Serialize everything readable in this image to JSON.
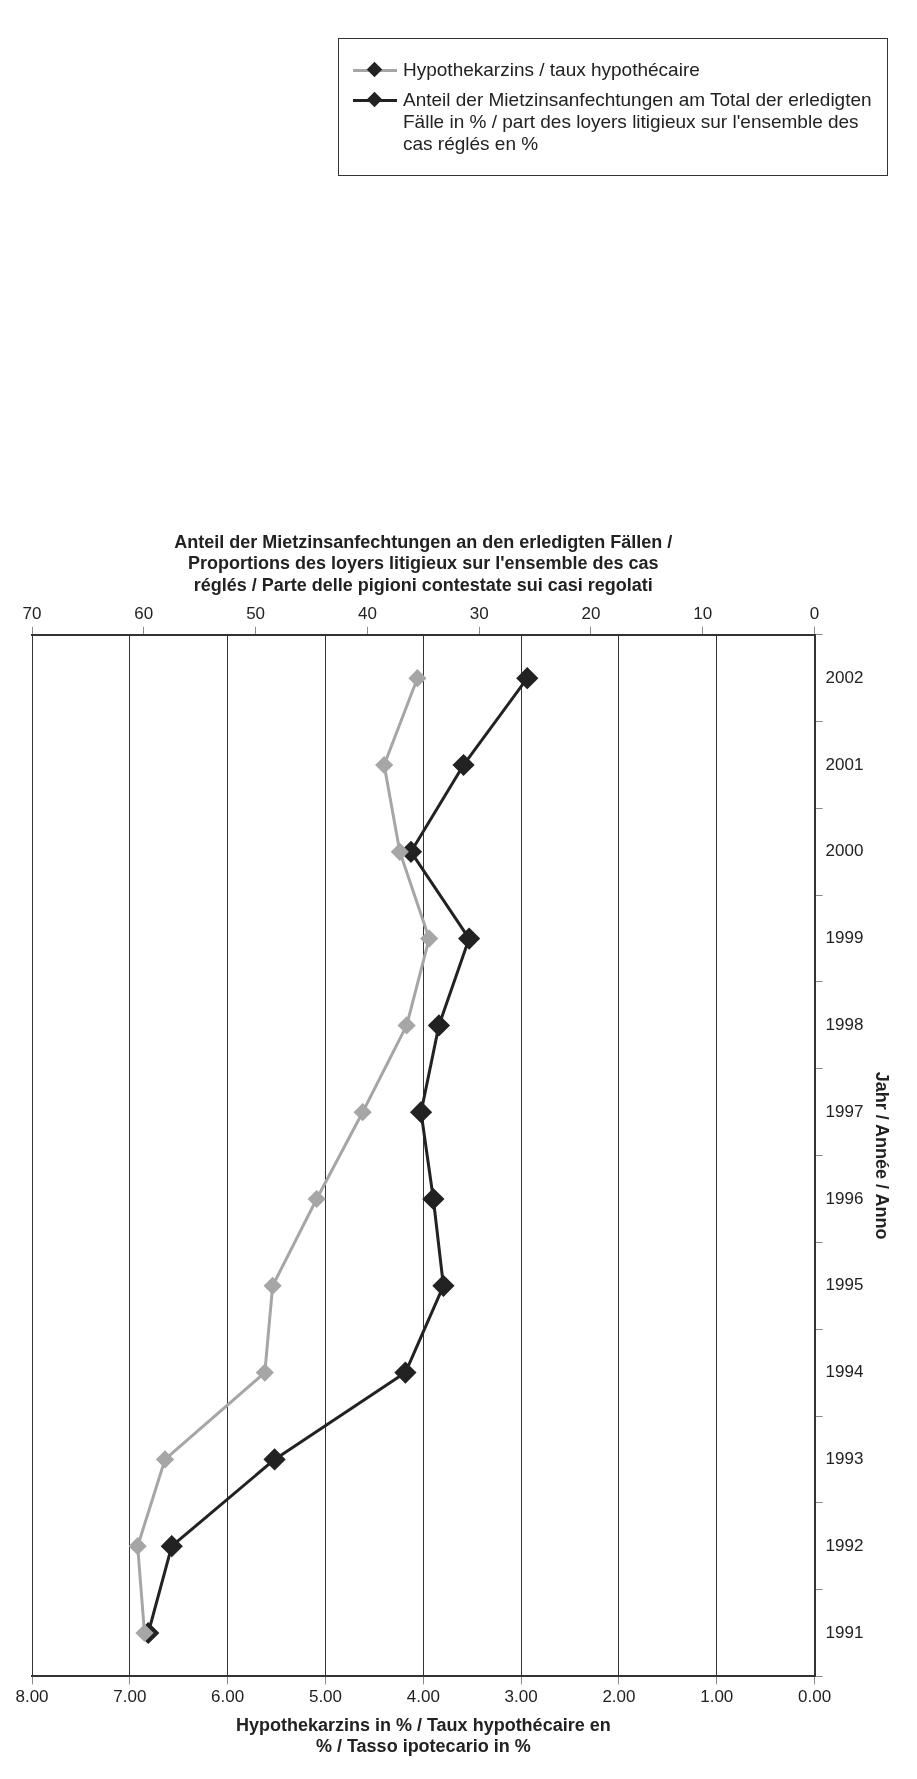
{
  "chart_data": {
    "type": "line",
    "orientation": "horizontal",
    "ylabel": "Jahr / Année / Anno",
    "xlabel": "Hypothekarzins in % / Taux hypothécaire en % / Tasso ipotecario in %",
    "x2label": "Anteil der Mietzinsanfechtungen an den erledigten Fällen / Proportions des loyers litigieux sur l'ensemble des cas réglés / Parte delle pigioni contestate sui casi regolati",
    "categories": [
      "2002",
      "2001",
      "2000",
      "1999",
      "1998",
      "1997",
      "1996",
      "1995",
      "1994",
      "1993",
      "1992",
      "1991"
    ],
    "series": [
      {
        "name": "Hypothekarzins / taux hypothécaire",
        "color": "#a6a6a6",
        "values": [
          4.06,
          4.4,
          4.24,
          3.94,
          4.17,
          4.62,
          5.09,
          5.54,
          5.62,
          6.64,
          6.92,
          6.85
        ]
      },
      {
        "name": "Anteil der Mietzinsanfechtungen am Total der erledigten Fälle in % / part des loyers litigieux sur l'ensemble des cas réglés en %",
        "color": "#222222",
        "axis": "x2",
        "values": [
          25.7,
          31.4,
          36.1,
          30.9,
          33.6,
          35.2,
          34.1,
          33.2,
          36.6,
          48.3,
          57.5,
          59.6
        ]
      }
    ],
    "xlim": [
      8,
      0
    ],
    "xticks": [
      {
        "value": 8,
        "label": "8.00"
      },
      {
        "value": 7,
        "label": "7.00"
      },
      {
        "value": 6,
        "label": "6.00"
      },
      {
        "value": 5,
        "label": "5.00"
      },
      {
        "value": 4,
        "label": "4.00"
      },
      {
        "value": 3,
        "label": "3.00"
      },
      {
        "value": 2,
        "label": "2.00"
      },
      {
        "value": 1,
        "label": "1.00"
      },
      {
        "value": 0,
        "label": "0.00"
      }
    ],
    "x2lim": [
      70,
      0
    ],
    "x2ticks": [
      70,
      60,
      50,
      40,
      30,
      20,
      10,
      0
    ],
    "grid": "x",
    "legend": "right",
    "marker": "diamond",
    "line_style": "solid"
  }
}
